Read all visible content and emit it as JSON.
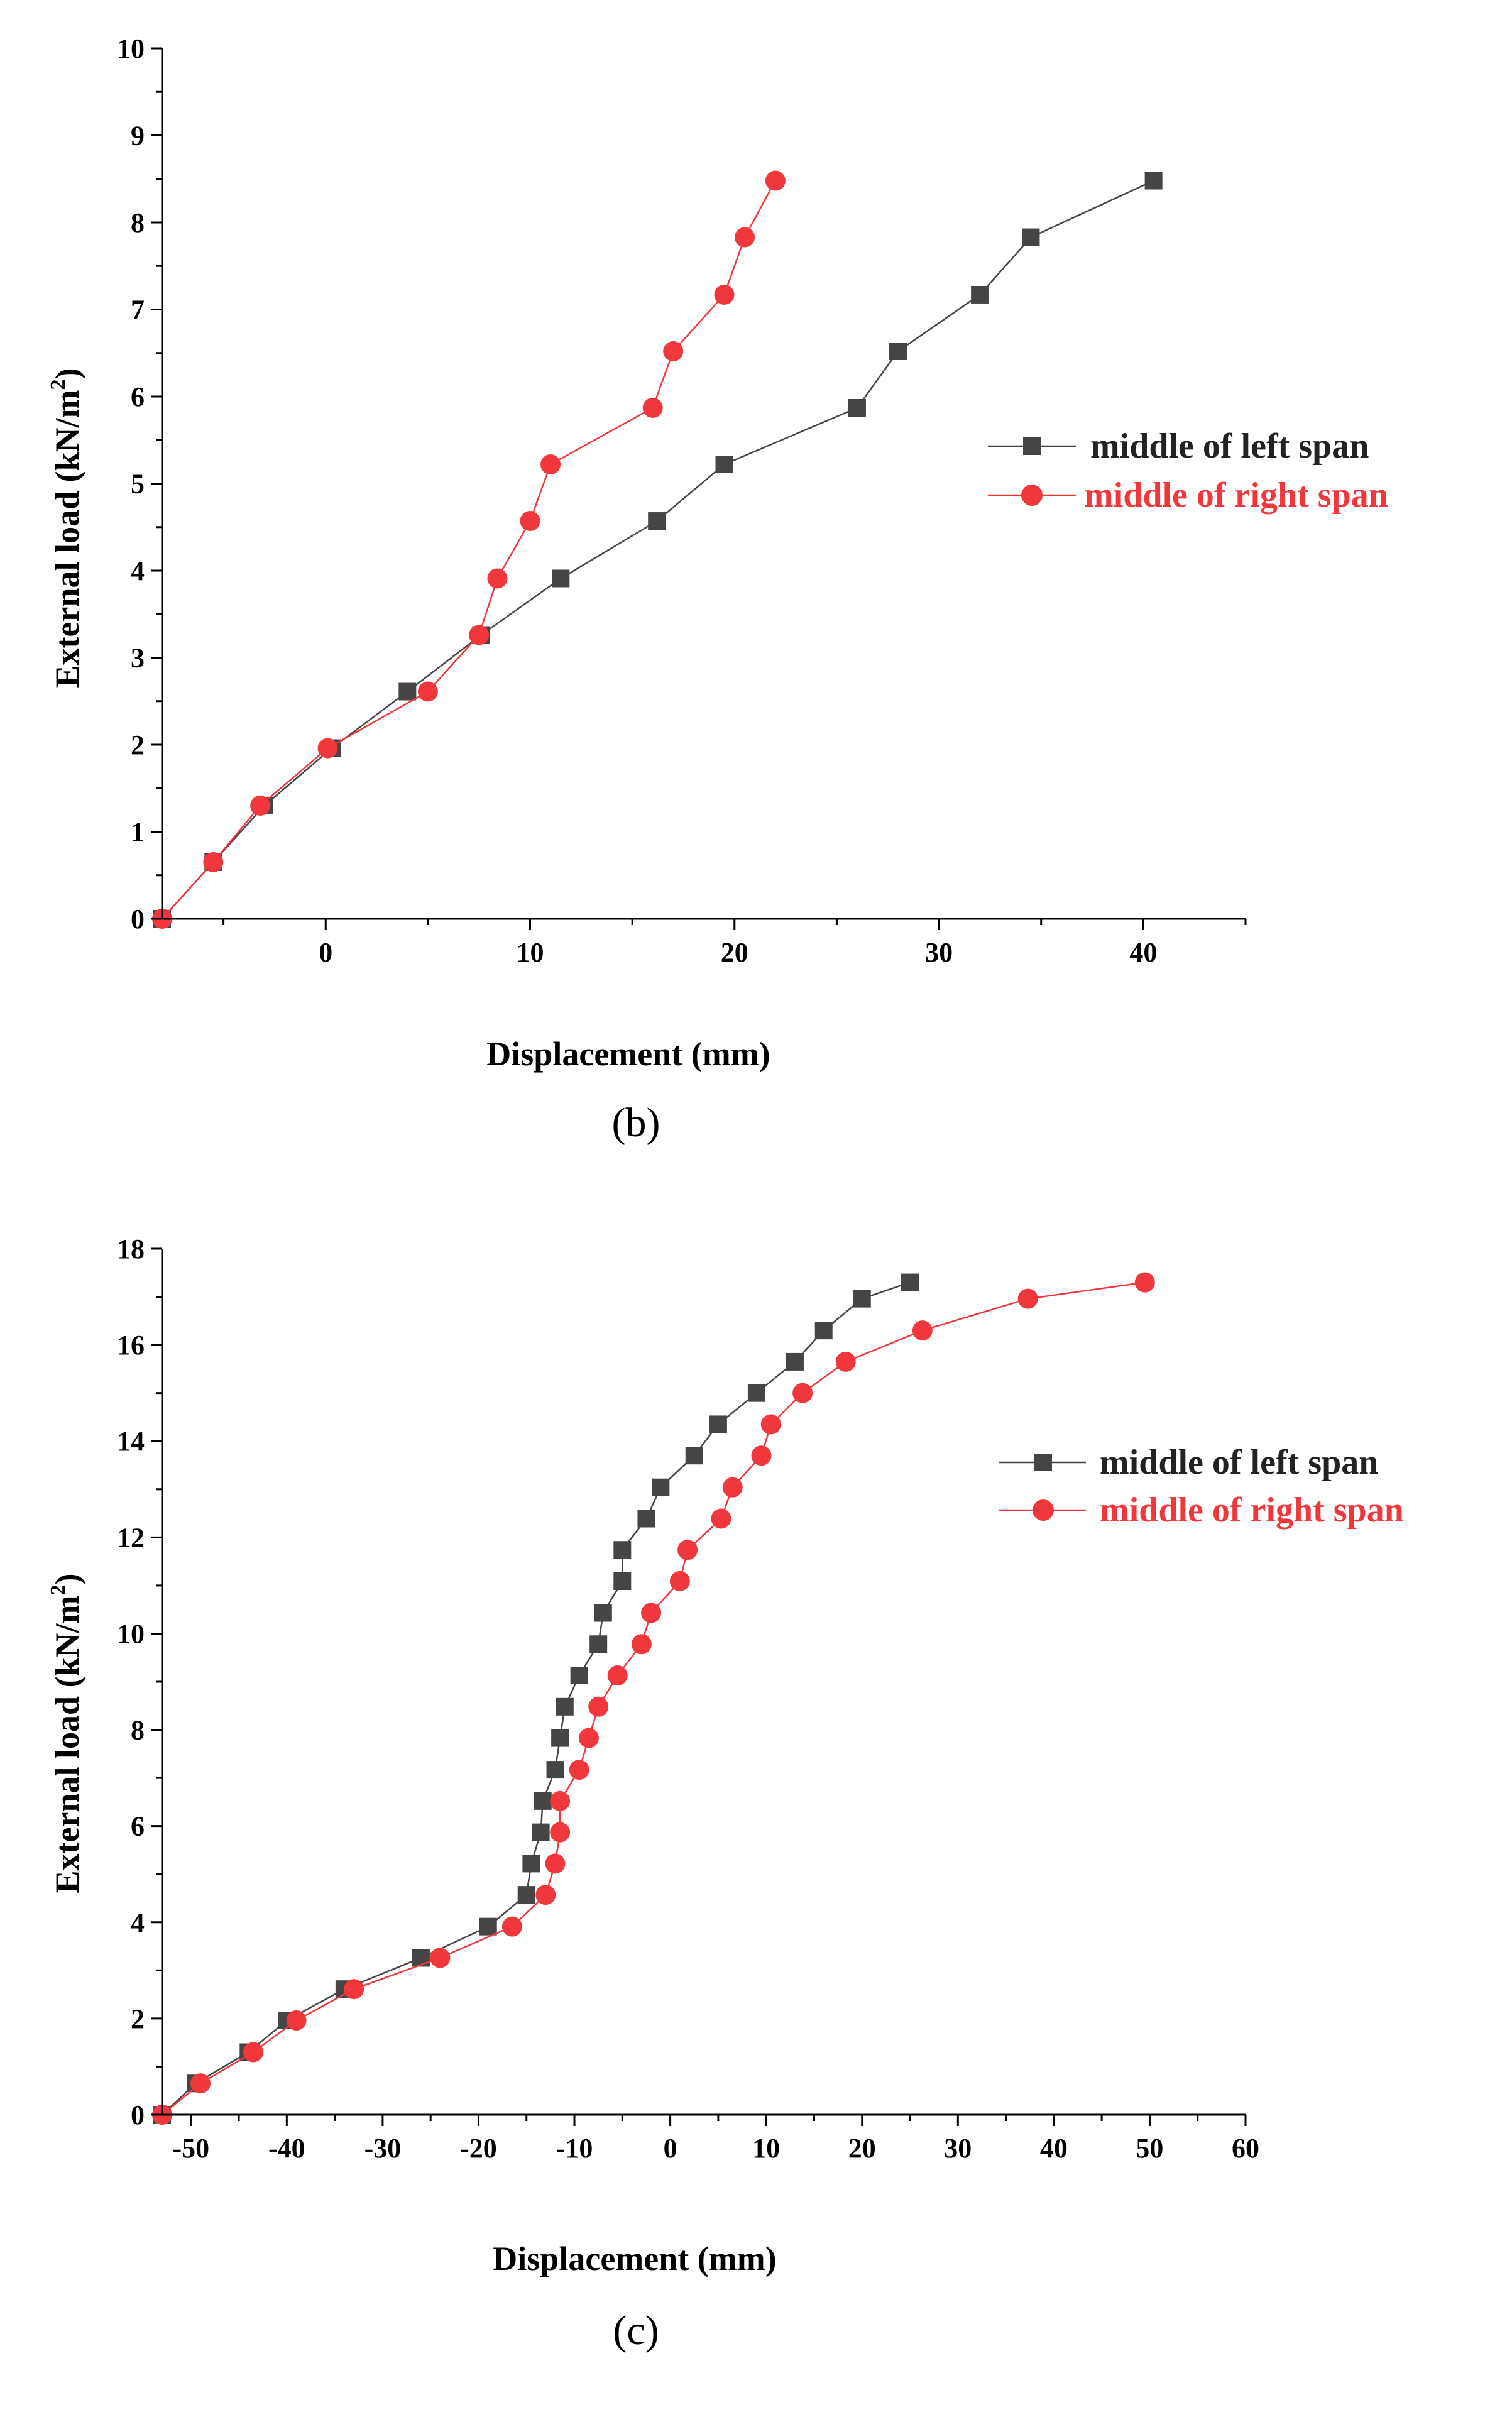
{
  "colors": {
    "series_left": "#454545",
    "series_right": "#f0383c"
  },
  "chart_data": [
    {
      "type": "line",
      "caption": "(b)",
      "xlabel": "Displacement (mm)",
      "ylabel": "External load (kN/m²)",
      "ylabel_main": "External load (kN/m",
      "ylabel_sup": "2",
      "ylabel_end": ")",
      "xlim": [
        -8,
        45
      ],
      "ylim": [
        0,
        10
      ],
      "xticks": [
        0,
        10,
        20,
        30,
        40
      ],
      "yticks": [
        0,
        1,
        2,
        3,
        4,
        5,
        6,
        7,
        8,
        9,
        10
      ],
      "legend_position": "center-right",
      "series": [
        {
          "name": "middle of left span",
          "marker": "square",
          "x": [
            -8,
            -5.5,
            -3,
            0.3,
            4,
            7.6,
            11.5,
            16.2,
            19.5,
            26,
            28,
            32,
            34.5,
            40.5
          ],
          "y": [
            0,
            0.65,
            1.3,
            1.96,
            2.61,
            3.26,
            3.91,
            4.57,
            5.22,
            5.87,
            6.52,
            7.17,
            7.83,
            8.48
          ]
        },
        {
          "name": "middle of right span",
          "marker": "circle",
          "x": [
            -8,
            -5.5,
            -3.2,
            0.1,
            5,
            7.5,
            8.4,
            10,
            11,
            16,
            17,
            19.5,
            20.5,
            22
          ],
          "y": [
            0,
            0.65,
            1.3,
            1.96,
            2.61,
            3.26,
            3.91,
            4.57,
            5.22,
            5.87,
            6.52,
            7.17,
            7.83,
            8.48
          ]
        }
      ]
    },
    {
      "type": "line",
      "caption": "(c)",
      "xlabel": "Displacement (mm)",
      "ylabel": "External load (kN/m²)",
      "ylabel_main": "External load (kN/m",
      "ylabel_sup": "2",
      "ylabel_end": ")",
      "xlim": [
        -53,
        60
      ],
      "ylim": [
        0,
        18
      ],
      "xticks": [
        -50,
        -40,
        -30,
        -20,
        -10,
        0,
        10,
        20,
        30,
        40,
        50,
        60
      ],
      "yticks": [
        0,
        2,
        4,
        6,
        8,
        10,
        12,
        14,
        16,
        18
      ],
      "legend_position": "center-right",
      "series": [
        {
          "name": "middle of left span",
          "marker": "square",
          "x": [
            -53,
            -49.5,
            -44,
            -40,
            -34,
            -26,
            -19,
            -15,
            -14.5,
            -13.5,
            -13.3,
            -12,
            -11.5,
            -11,
            -9.5,
            -7.5,
            -7,
            -5,
            -5,
            -2.5,
            -1,
            2.5,
            5,
            9,
            13,
            16,
            20,
            25
          ],
          "y": [
            0,
            0.65,
            1.3,
            1.96,
            2.61,
            3.26,
            3.91,
            4.57,
            5.22,
            5.87,
            6.52,
            7.17,
            7.83,
            8.48,
            9.13,
            9.78,
            10.43,
            11.09,
            11.74,
            12.39,
            13.04,
            13.7,
            14.35,
            15,
            15.65,
            16.3,
            16.96,
            17.3
          ]
        },
        {
          "name": "middle of right span",
          "marker": "circle",
          "x": [
            -53,
            -49,
            -43.5,
            -39,
            -33,
            -24,
            -16.5,
            -13,
            -12,
            -11.5,
            -11.5,
            -9.5,
            -8.5,
            -7.5,
            -5.5,
            -3,
            -2,
            1,
            1.8,
            5.3,
            6.5,
            9.5,
            10.5,
            13.8,
            18.3,
            26.3,
            37.3,
            49.5
          ],
          "y": [
            0,
            0.65,
            1.3,
            1.96,
            2.61,
            3.26,
            3.91,
            4.57,
            5.22,
            5.87,
            6.52,
            7.17,
            7.83,
            8.48,
            9.13,
            9.78,
            10.43,
            11.09,
            11.74,
            12.39,
            13.04,
            13.7,
            14.35,
            15,
            15.65,
            16.3,
            16.96,
            17.3
          ]
        }
      ]
    }
  ]
}
